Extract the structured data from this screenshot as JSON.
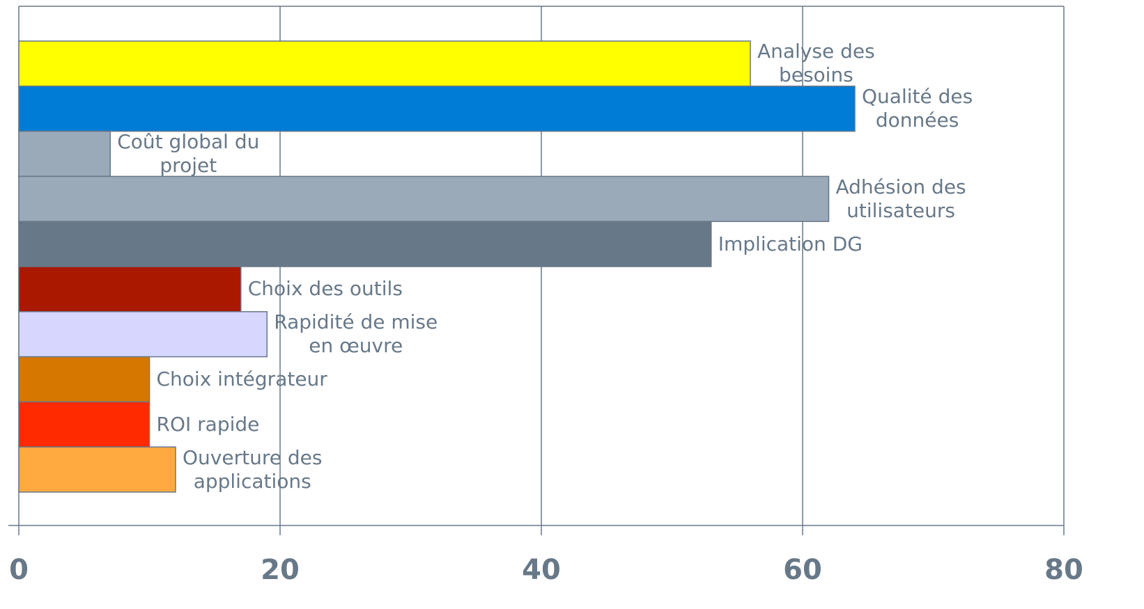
{
  "chart_data": {
    "type": "barh",
    "categories": [
      "Analyse des\nbesoins",
      "Qualité des\ndonnées",
      "Coût global du\nprojet",
      "Adhésion des\nutilisateurs",
      "Implication DG",
      "Choix des outils",
      "Rapidité de mise\nen œuvre",
      "Choix intégrateur",
      "ROI rapide",
      "Ouverture des\napplications"
    ],
    "values": [
      56,
      64,
      7,
      62,
      53,
      17,
      19,
      10,
      10,
      12
    ],
    "colors": [
      "#ffff00",
      "#007bd6",
      "#9aaab8",
      "#9aaab8",
      "#677888",
      "#aa1800",
      "#d6d6ff",
      "#d67800",
      "#ff2a00",
      "#ffaa40"
    ],
    "xlim": [
      0,
      80
    ],
    "xticks": [
      0,
      20,
      40,
      60,
      80
    ],
    "grid": true
  }
}
